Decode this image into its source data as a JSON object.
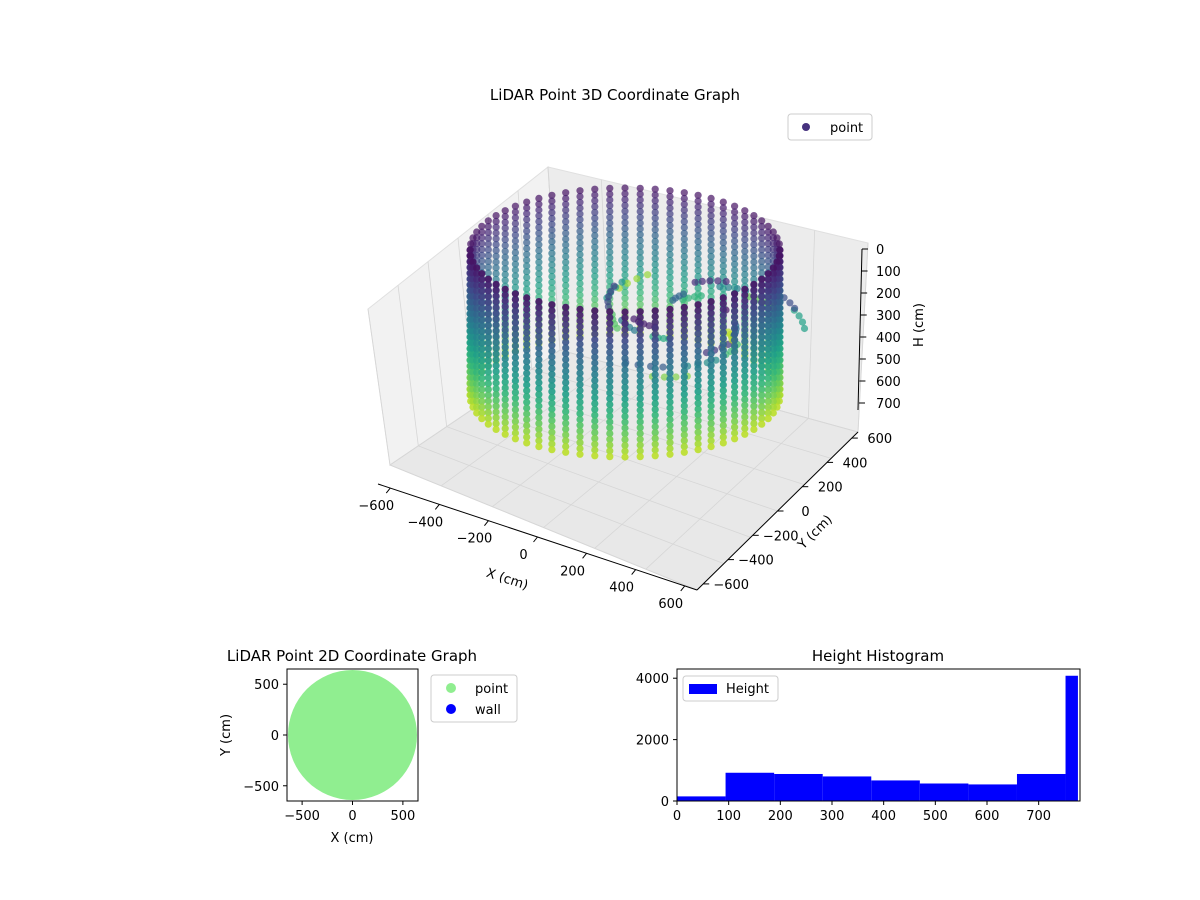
{
  "chart_data": [
    {
      "type": "scatter3d",
      "title": "LiDAR Point 3D Coordinate Graph",
      "xlabel": "X (cm)",
      "ylabel": "Y (cm)",
      "zlabel": "H (cm)",
      "xlim": [
        -650,
        650
      ],
      "ylim": [
        -650,
        650
      ],
      "zlim": [
        0,
        780
      ],
      "z_inverted": true,
      "xticks": [
        -600,
        -400,
        -200,
        0,
        200,
        400,
        600
      ],
      "yticks": [
        -600,
        -400,
        -200,
        0,
        200,
        400,
        600
      ],
      "zticks": [
        0,
        100,
        200,
        300,
        400,
        500,
        600,
        700
      ],
      "colormap": "viridis",
      "legend": {
        "entries": [
          "point"
        ],
        "placement": "top-right"
      },
      "series": [
        {
          "name": "point",
          "shape": "cylindrical wall of vertical scan lines, radius ~600 cm, heights 0-780 cm, with interior furniture points",
          "radius": 600,
          "height_range": [
            0,
            780
          ]
        }
      ]
    },
    {
      "type": "scatter",
      "title": "LiDAR Point 2D Coordinate Graph",
      "xlabel": "X (cm)",
      "ylabel": "Y (cm)",
      "xlim": [
        -650,
        650
      ],
      "ylim": [
        -650,
        650
      ],
      "xticks": [
        -500,
        0,
        500
      ],
      "yticks": [
        -500,
        0,
        500
      ],
      "legend": {
        "entries": [
          "point",
          "wall"
        ],
        "placement": "outside-right"
      },
      "series": [
        {
          "name": "point",
          "color": "#90ee90",
          "shape": "filled disk",
          "radius": 640
        },
        {
          "name": "wall",
          "color": "#0000ff"
        }
      ]
    },
    {
      "type": "bar",
      "title": "Height Histogram",
      "legend": {
        "entries": [
          "Height"
        ],
        "placement": "top-left"
      },
      "xlim": [
        0,
        780
      ],
      "ylim": [
        0,
        4300
      ],
      "xticks": [
        0,
        100,
        200,
        300,
        400,
        500,
        600,
        700
      ],
      "yticks": [
        0,
        2000,
        4000
      ],
      "color": "#0000ff",
      "bin_edges": [
        0,
        94,
        188,
        282,
        376,
        470,
        564,
        658,
        752,
        776
      ],
      "values": [
        150,
        920,
        880,
        800,
        670,
        570,
        540,
        880,
        4080
      ],
      "series": [
        {
          "name": "Height"
        }
      ]
    }
  ]
}
